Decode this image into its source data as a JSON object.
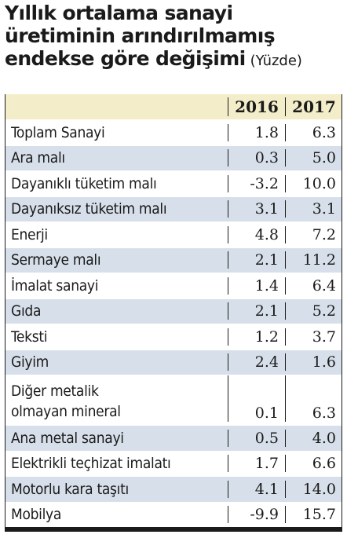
{
  "title": {
    "line1": "Yıllık ortalama sanayi",
    "line2": "üretiminin arındırılmamış",
    "line3": "endekse göre değişimi",
    "unit": "(Yüzde)"
  },
  "table": {
    "columns": [
      "2016",
      "2017"
    ],
    "rows": [
      {
        "label": "Toplam Sanayi",
        "v2016": "1.8",
        "v2017": "6.3"
      },
      {
        "label": "Ara malı",
        "v2016": "0.3",
        "v2017": "5.0"
      },
      {
        "label": "Dayanıklı tüketim malı",
        "v2016": "-3.2",
        "v2017": "10.0"
      },
      {
        "label": "Dayanıksız tüketim malı",
        "v2016": "3.1",
        "v2017": "3.1"
      },
      {
        "label": "Enerji",
        "v2016": "4.8",
        "v2017": "7.2"
      },
      {
        "label": "Sermaye malı",
        "v2016": "2.1",
        "v2017": "11.2"
      },
      {
        "label": "İmalat sanayi",
        "v2016": "1.4",
        "v2017": "6.4"
      },
      {
        "label": "Gıda",
        "v2016": "2.1",
        "v2017": "5.2"
      },
      {
        "label": "Teksti",
        "v2016": "1.2",
        "v2017": "3.7"
      },
      {
        "label": "Giyim",
        "v2016": "2.4",
        "v2017": "1.6"
      },
      {
        "label_line1": "Diğer metalik",
        "label_line2": "olmayan mineral",
        "v2016": "0.1",
        "v2017": "6.3"
      },
      {
        "label": "Ana metal sanayi",
        "v2016": "0.5",
        "v2017": "4.0"
      },
      {
        "label": "Elektrikli teçhizat imalatı",
        "v2016": "1.7",
        "v2017": "6.6"
      },
      {
        "label": "Motorlu kara taşıtı",
        "v2016": "4.1",
        "v2017": "14.0"
      },
      {
        "label": "Mobilya",
        "v2016": "-9.9",
        "v2017": "15.7"
      }
    ]
  }
}
